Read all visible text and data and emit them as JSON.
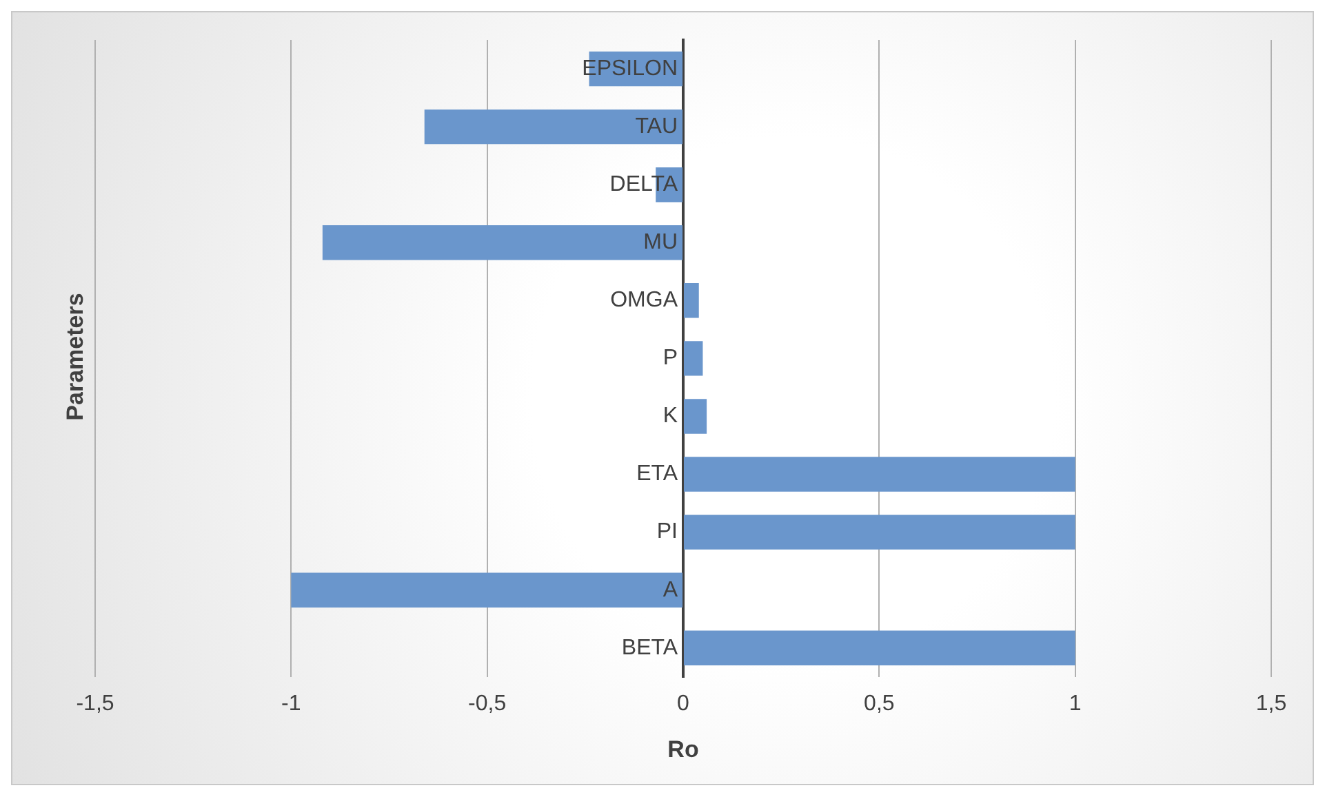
{
  "chart_data": {
    "type": "bar",
    "orientation": "horizontal",
    "xlabel": "Ro",
    "ylabel": "Parameters",
    "categories": [
      "EPSILON",
      "TAU",
      "DELTA",
      "MU",
      "OMGA",
      "P",
      "K",
      "ETA",
      "PI",
      "A",
      "BETA"
    ],
    "values": [
      -0.24,
      -0.66,
      -0.07,
      -0.92,
      0.04,
      0.05,
      0.06,
      1,
      1,
      -1,
      1
    ],
    "color": "#6a96cc",
    "xlim": [
      -1.5,
      1.5
    ],
    "xticks": [
      {
        "value": -1.5,
        "label": "-1,5"
      },
      -1,
      {
        "value": -0.5,
        "label": "-0,5"
      },
      0,
      {
        "value": 0.5,
        "label": "0,5"
      },
      1,
      {
        "value": 1.5,
        "label": "1,5"
      }
    ],
    "grid": "x"
  }
}
